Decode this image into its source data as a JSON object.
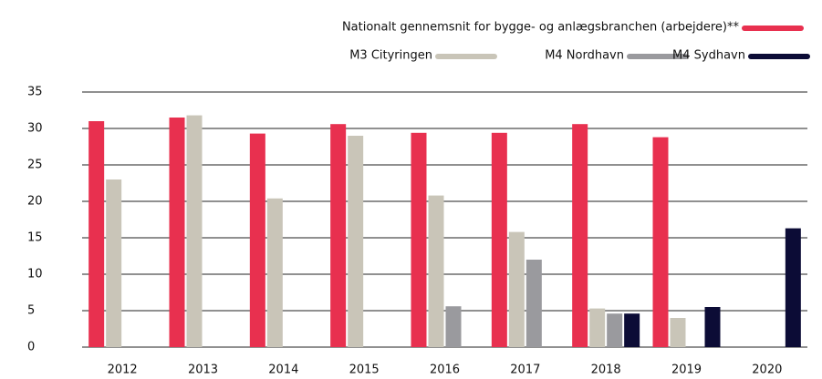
{
  "chart_data": {
    "type": "bar",
    "categories": [
      "2012",
      "2013",
      "2014",
      "2015",
      "2016",
      "2017",
      "2018",
      "2019",
      "2020"
    ],
    "series": [
      {
        "name": "Nationalt gennemsnit for bygge- og anlægsbranchen (arbejdere)**",
        "color": "#e8304f",
        "values": [
          31.0,
          31.5,
          29.3,
          30.6,
          29.4,
          29.4,
          30.6,
          28.8,
          null
        ]
      },
      {
        "name": "M3 Cityringen",
        "color": "#c9c5b8",
        "values": [
          23.0,
          31.8,
          20.4,
          29.0,
          20.8,
          15.8,
          5.3,
          4.0,
          null
        ]
      },
      {
        "name": "M4 Nordhavn",
        "color": "#9a9a9e",
        "values": [
          null,
          null,
          null,
          null,
          5.6,
          12.0,
          4.6,
          null,
          null
        ]
      },
      {
        "name": "M4 Sydhavn",
        "color": "#0c0c36",
        "values": [
          null,
          null,
          null,
          null,
          null,
          null,
          4.6,
          5.5,
          16.3
        ]
      }
    ],
    "ylim": [
      0,
      35
    ],
    "yticks": [
      0,
      5,
      10,
      15,
      20,
      25,
      30,
      35
    ],
    "grid": true
  }
}
